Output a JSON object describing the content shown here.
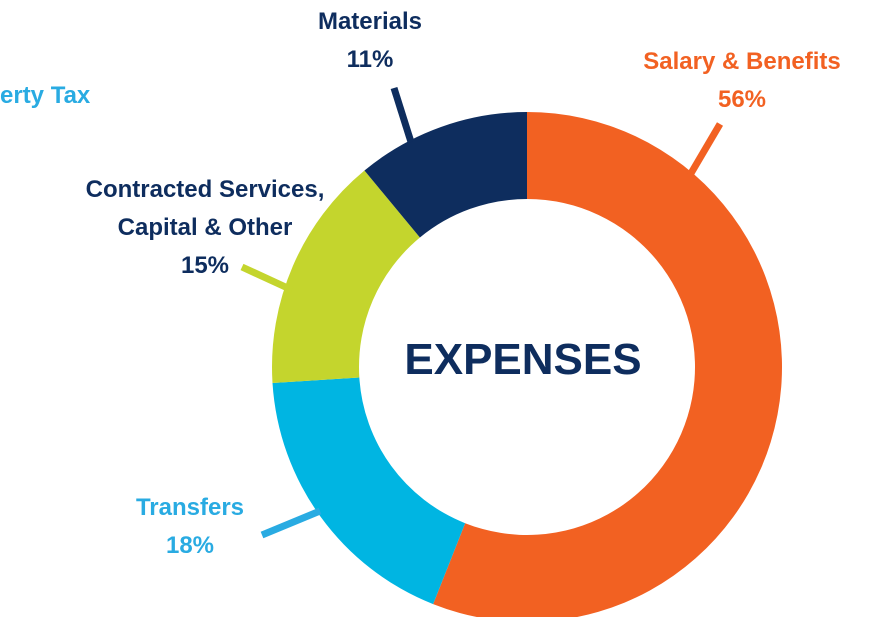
{
  "chart_data": {
    "type": "pie",
    "categories": [
      "Salary & Benefits",
      "Transfers",
      "Contracted Services, Capital & Other",
      "Materials"
    ],
    "values": [
      56,
      18,
      15,
      11
    ],
    "value_labels": [
      "56%",
      "18%",
      "15%",
      "11%"
    ],
    "colors": [
      "#f26122",
      "#00b5e2",
      "#c4d52d",
      "#0e2d5e"
    ],
    "label_colors": [
      "#f26122",
      "#29abe2",
      "#0e2d5e",
      "#0e2d5e"
    ],
    "donut": true,
    "center_label": "EXPENSES",
    "annotations": [
      "erty Tax"
    ]
  }
}
